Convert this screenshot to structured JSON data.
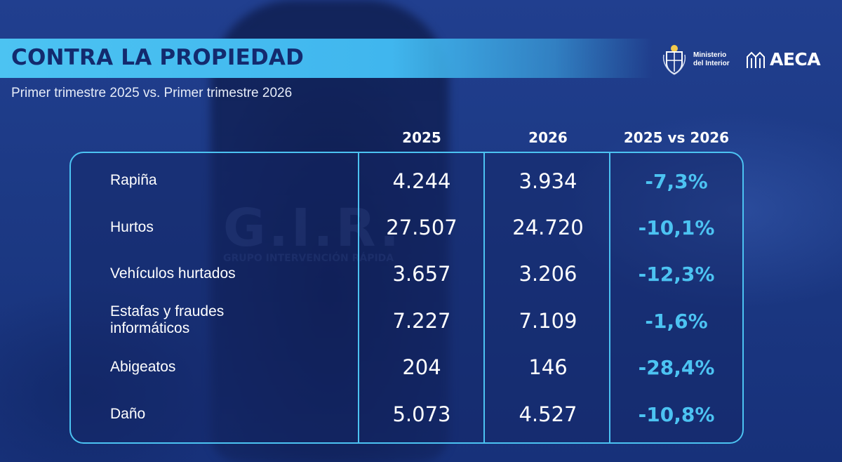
{
  "header": {
    "title": "CONTRA LA PROPIEDAD",
    "subtitle": "Primer trimestre 2025 vs. Primer trimestre 2026"
  },
  "logos": {
    "ministry_line1": "Ministerio",
    "ministry_line2": "del Interior",
    "aeca": "AECA"
  },
  "table": {
    "columns": [
      "2025",
      "2026",
      "2025 vs 2026"
    ],
    "rows": [
      {
        "label": "Rapiña",
        "v2025": "4.244",
        "v2026": "3.934",
        "change": "-7,3%"
      },
      {
        "label": "Hurtos",
        "v2025": "27.507",
        "v2026": "24.720",
        "change": "-10,1%"
      },
      {
        "label": "Vehículos hurtados",
        "v2025": "3.657",
        "v2026": "3.206",
        "change": "-12,3%"
      },
      {
        "label": "Estafas y fraudes informáticos",
        "label_line1": "Estafas y fraudes",
        "label_line2": "informáticos",
        "v2025": "7.227",
        "v2026": "7.109",
        "change": "-1,6%"
      },
      {
        "label": "Abigeatos",
        "v2025": "204",
        "v2026": "146",
        "change": "-28,4%"
      },
      {
        "label": "Daño",
        "v2025": "5.073",
        "v2026": "4.527",
        "change": "-10,8%"
      }
    ]
  },
  "background": {
    "vest_text": "G.I.R.",
    "vest_subtext": "GRUPO INTERVENCIÓN RÁPIDA"
  },
  "colors": {
    "accent": "#4cc3f2",
    "title_text": "#132a6e",
    "background": "#1b3a86"
  }
}
